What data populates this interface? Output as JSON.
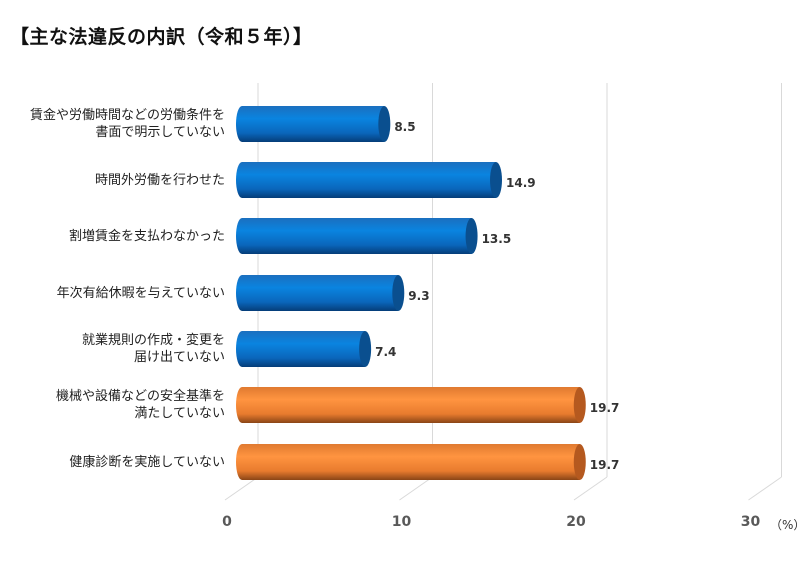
{
  "title": "【主な法違反の内訳（令和５年）】",
  "chart_data": {
    "type": "bar",
    "orientation": "horizontal",
    "style": "3d-cylinder",
    "title": "【主な法違反の内訳（令和５年）】",
    "categories": [
      "賃金や労働時間などの労働条件を書面で明示していない",
      "時間外労働を行わせた",
      "割増賃金を支払わなかった",
      "年次有給休暇を与えていない",
      "就業規則の作成・変更を届け出ていない",
      "機械や設備などの安全基準を満たしていない",
      "健康診断を実施していない"
    ],
    "values": [
      8.5,
      14.9,
      13.5,
      9.3,
      7.4,
      19.7,
      19.7
    ],
    "bar_colors": [
      "#0b6fc6",
      "#0b6fc6",
      "#0b6fc6",
      "#0b6fc6",
      "#0b6fc6",
      "#f28a3c",
      "#f28a3c"
    ],
    "xlabel": "",
    "ylabel": "",
    "unit": "（%）",
    "xlim": [
      0,
      30
    ],
    "xticks": [
      0,
      10,
      20,
      30
    ],
    "grid": true,
    "legend": null
  },
  "labels": [
    {
      "lines": [
        "賃金や労働時間などの労働条件を",
        "書面で明示していない"
      ]
    },
    {
      "lines": [
        "時間外労働を行わせた"
      ]
    },
    {
      "lines": [
        "割増賃金を支払わなかった"
      ]
    },
    {
      "lines": [
        "年次有給休暇を与えていない"
      ]
    },
    {
      "lines": [
        "就業規則の作成・変更を",
        "届け出ていない"
      ]
    },
    {
      "lines": [
        "機械や設備などの安全基準を",
        "満たしていない"
      ]
    },
    {
      "lines": [
        "健康診断を実施していない"
      ]
    }
  ],
  "value_labels": [
    "8.5",
    "14.9",
    "13.5",
    "9.3",
    "7.4",
    "19.7",
    "19.7"
  ],
  "ticks": [
    "0",
    "10",
    "20",
    "30"
  ],
  "unit": "（%）"
}
